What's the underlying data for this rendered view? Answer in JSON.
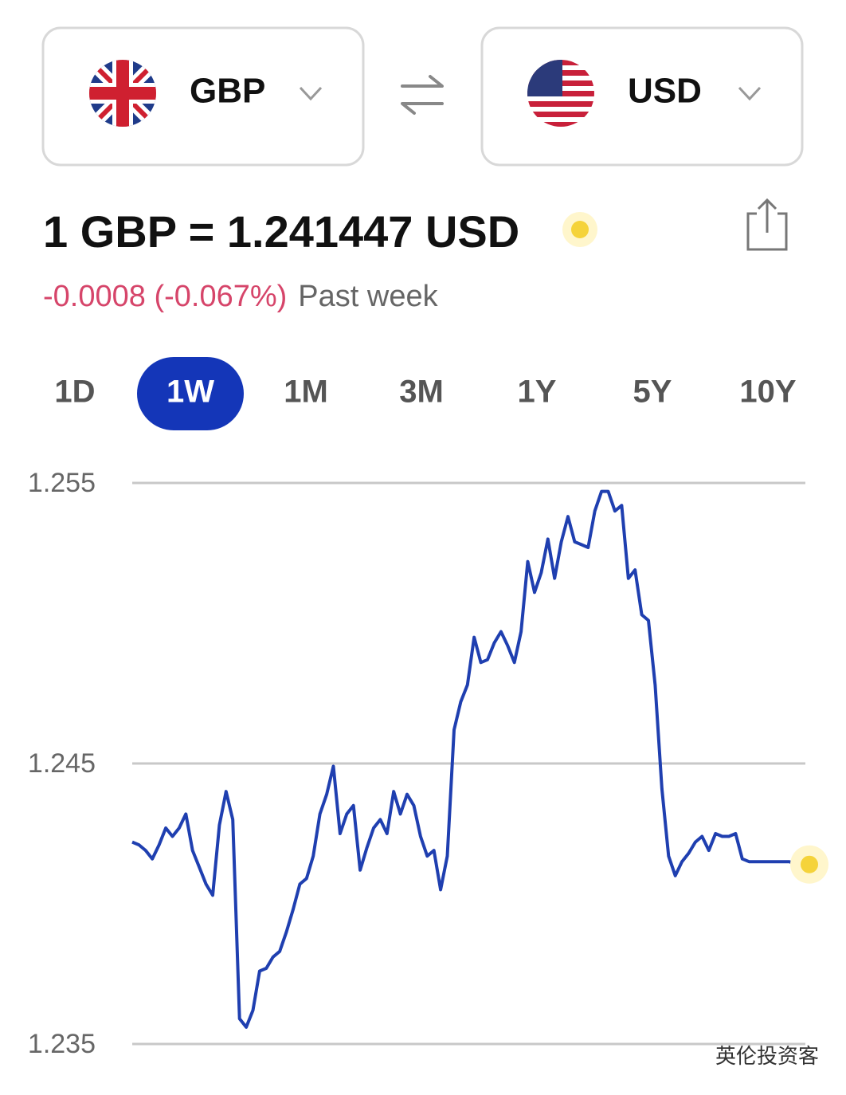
{
  "from_currency": "GBP",
  "to_currency": "USD",
  "rate_text": "1 GBP = 1.241447 USD",
  "change": "-0.0008 (-0.067%)",
  "change_period": "Past week",
  "ranges": [
    "1D",
    "1W",
    "1M",
    "3M",
    "1Y",
    "5Y",
    "10Y"
  ],
  "selected_range": "1W",
  "watermark": "英伦投资客",
  "chart_data": {
    "type": "line",
    "color": "#1f3fb0",
    "grid": true,
    "ylim": [
      1.235,
      1.255
    ],
    "yticks": [
      1.235,
      1.245,
      1.255
    ],
    "values": [
      1.2422,
      1.2421,
      1.2419,
      1.2416,
      1.2421,
      1.2427,
      1.2424,
      1.2427,
      1.2432,
      1.2419,
      1.2413,
      1.2407,
      1.2403,
      1.2428,
      1.244,
      1.243,
      1.2359,
      1.2356,
      1.2362,
      1.2376,
      1.2377,
      1.2381,
      1.2383,
      1.239,
      1.2398,
      1.2407,
      1.2409,
      1.2417,
      1.2432,
      1.2439,
      1.2449,
      1.2425,
      1.2432,
      1.2435,
      1.2412,
      1.242,
      1.2427,
      1.243,
      1.2425,
      1.244,
      1.2432,
      1.2439,
      1.2435,
      1.2424,
      1.2417,
      1.2419,
      1.2405,
      1.2417,
      1.2462,
      1.2472,
      1.2478,
      1.2495,
      1.2486,
      1.2487,
      1.2493,
      1.2497,
      1.2492,
      1.2486,
      1.2497,
      1.2522,
      1.2511,
      1.2518,
      1.253,
      1.2516,
      1.2529,
      1.2538,
      1.2529,
      1.2528,
      1.2527,
      1.254,
      1.2547,
      1.2547,
      1.254,
      1.2542,
      1.2516,
      1.2519,
      1.2503,
      1.2501,
      1.2478,
      1.2441,
      1.2417,
      1.241,
      1.2415,
      1.2418,
      1.2422,
      1.2424,
      1.2419,
      1.2425,
      1.2424,
      1.2424,
      1.2425,
      1.2416,
      1.2415,
      1.2415,
      1.2415,
      1.2415,
      1.2415,
      1.2415,
      1.2415,
      1.2414,
      1.2414,
      1.2414
    ]
  }
}
